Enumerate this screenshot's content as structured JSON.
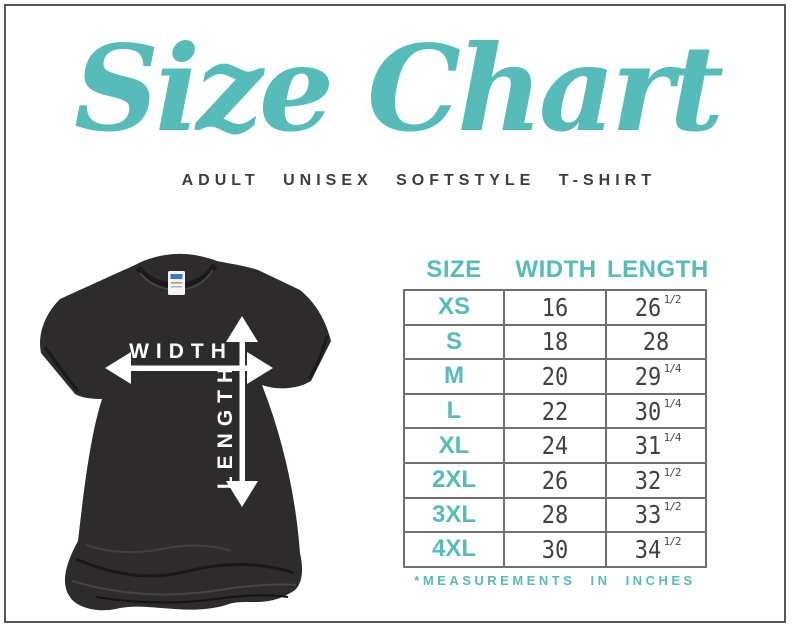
{
  "title": "Size Chart",
  "subtitle": "ADULT UNISEX SOFTSTYLE T-SHIRT",
  "shirt": {
    "width_label": "WIDTH",
    "length_label": "LENGTH"
  },
  "table": {
    "headers": [
      "SIZE",
      "WIDTH",
      "LENGTH"
    ],
    "rows": [
      {
        "size": "XS",
        "width": "16",
        "length": "26",
        "frac": "1/2"
      },
      {
        "size": "S",
        "width": "18",
        "length": "28",
        "frac": ""
      },
      {
        "size": "M",
        "width": "20",
        "length": "29",
        "frac": "1/4"
      },
      {
        "size": "L",
        "width": "22",
        "length": "30",
        "frac": "1/4"
      },
      {
        "size": "XL",
        "width": "24",
        "length": "31",
        "frac": "1/4"
      },
      {
        "size": "2XL",
        "width": "26",
        "length": "32",
        "frac": "1/2"
      },
      {
        "size": "3XL",
        "width": "28",
        "length": "33",
        "frac": "1/2"
      },
      {
        "size": "4XL",
        "width": "30",
        "length": "34",
        "frac": "1/2"
      }
    ],
    "footnote": "*MEASUREMENTS IN INCHES"
  },
  "units": "inches",
  "colors": {
    "accent": "#55bcba",
    "text": "#3d3d3d",
    "shirt": "#2d2b2c",
    "table_border": "#6f6f6f",
    "frame_border": "#565656"
  }
}
